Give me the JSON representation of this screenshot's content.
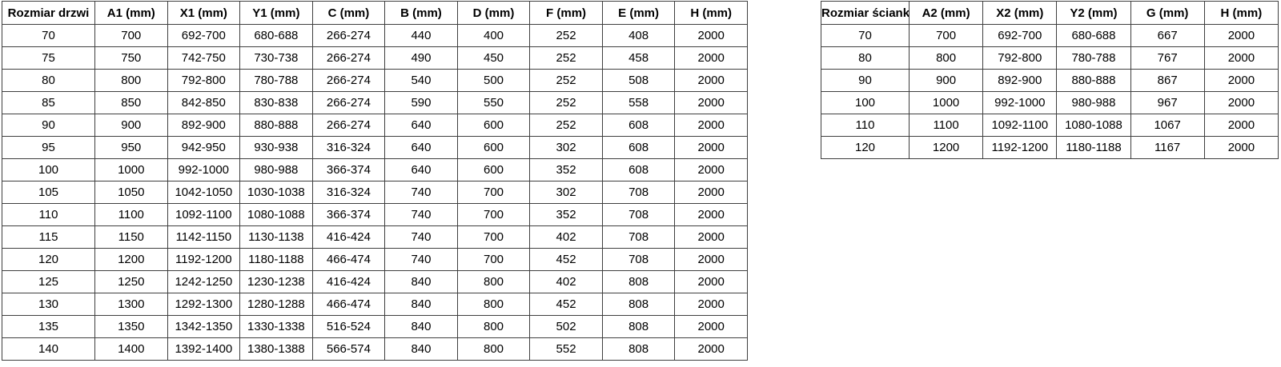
{
  "colors": {
    "background": "#ffffff",
    "border": "#3f3f3f",
    "text": "#000000"
  },
  "tables": [
    {
      "name": "door-size-table",
      "headers": [
        "Rozmiar drzwi",
        "A1 (mm)",
        "X1 (mm)",
        "Y1 (mm)",
        "C (mm)",
        "B (mm)",
        "D (mm)",
        "F (mm)",
        "E (mm)",
        "H (mm)"
      ],
      "rows": [
        [
          "70",
          "700",
          "692-700",
          "680-688",
          "266-274",
          "440",
          "400",
          "252",
          "408",
          "2000"
        ],
        [
          "75",
          "750",
          "742-750",
          "730-738",
          "266-274",
          "490",
          "450",
          "252",
          "458",
          "2000"
        ],
        [
          "80",
          "800",
          "792-800",
          "780-788",
          "266-274",
          "540",
          "500",
          "252",
          "508",
          "2000"
        ],
        [
          "85",
          "850",
          "842-850",
          "830-838",
          "266-274",
          "590",
          "550",
          "252",
          "558",
          "2000"
        ],
        [
          "90",
          "900",
          "892-900",
          "880-888",
          "266-274",
          "640",
          "600",
          "252",
          "608",
          "2000"
        ],
        [
          "95",
          "950",
          "942-950",
          "930-938",
          "316-324",
          "640",
          "600",
          "302",
          "608",
          "2000"
        ],
        [
          "100",
          "1000",
          "992-1000",
          "980-988",
          "366-374",
          "640",
          "600",
          "352",
          "608",
          "2000"
        ],
        [
          "105",
          "1050",
          "1042-1050",
          "1030-1038",
          "316-324",
          "740",
          "700",
          "302",
          "708",
          "2000"
        ],
        [
          "110",
          "1100",
          "1092-1100",
          "1080-1088",
          "366-374",
          "740",
          "700",
          "352",
          "708",
          "2000"
        ],
        [
          "115",
          "1150",
          "1142-1150",
          "1130-1138",
          "416-424",
          "740",
          "700",
          "402",
          "708",
          "2000"
        ],
        [
          "120",
          "1200",
          "1192-1200",
          "1180-1188",
          "466-474",
          "740",
          "700",
          "452",
          "708",
          "2000"
        ],
        [
          "125",
          "1250",
          "1242-1250",
          "1230-1238",
          "416-424",
          "840",
          "800",
          "402",
          "808",
          "2000"
        ],
        [
          "130",
          "1300",
          "1292-1300",
          "1280-1288",
          "466-474",
          "840",
          "800",
          "452",
          "808",
          "2000"
        ],
        [
          "135",
          "1350",
          "1342-1350",
          "1330-1338",
          "516-524",
          "840",
          "800",
          "502",
          "808",
          "2000"
        ],
        [
          "140",
          "1400",
          "1392-1400",
          "1380-1388",
          "566-574",
          "840",
          "800",
          "552",
          "808",
          "2000"
        ]
      ]
    },
    {
      "name": "wall-size-table",
      "headers": [
        "Rozmiar ścianki",
        "A2 (mm)",
        "X2 (mm)",
        "Y2 (mm)",
        "G (mm)",
        "H (mm)"
      ],
      "rows": [
        [
          "70",
          "700",
          "692-700",
          "680-688",
          "667",
          "2000"
        ],
        [
          "80",
          "800",
          "792-800",
          "780-788",
          "767",
          "2000"
        ],
        [
          "90",
          "900",
          "892-900",
          "880-888",
          "867",
          "2000"
        ],
        [
          "100",
          "1000",
          "992-1000",
          "980-988",
          "967",
          "2000"
        ],
        [
          "110",
          "1100",
          "1092-1100",
          "1080-1088",
          "1067",
          "2000"
        ],
        [
          "120",
          "1200",
          "1192-1200",
          "1180-1188",
          "1167",
          "2000"
        ]
      ]
    }
  ]
}
